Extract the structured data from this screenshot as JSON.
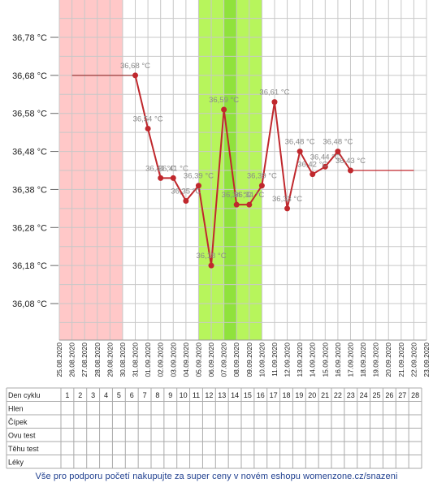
{
  "chart_data": {
    "type": "line",
    "y_ticks": [
      "36,08 °C",
      "36,18 °C",
      "36,28 °C",
      "36,38 °C",
      "36,48 °C",
      "36,58 °C",
      "36,68 °C",
      "36,78 °C"
    ],
    "y_tick_values": [
      36.08,
      36.18,
      36.28,
      36.38,
      36.48,
      36.58,
      36.68,
      36.78
    ],
    "ylim": [
      35.98,
      36.88
    ],
    "grid": true,
    "x_dates": [
      "25.08.2020",
      "26.08.2020",
      "27.08.2020",
      "28.08.2020",
      "29.08.2020",
      "30.08.2020",
      "31.08.2020",
      "01.09.2020",
      "02.09.2020",
      "03.09.2020",
      "04.09.2020",
      "05.09.2020",
      "06.09.2020",
      "07.09.2020",
      "08.09.2020",
      "09.09.2020",
      "10.09.2020",
      "11.09.2020",
      "12.09.2020",
      "13.09.2020",
      "14.09.2020",
      "15.09.2020",
      "16.09.2020",
      "17.09.2020",
      "18.09.2020",
      "19.09.2020",
      "20.09.2020",
      "21.09.2020",
      "22.09.2020",
      "23.09.2020"
    ],
    "series": [
      {
        "color": "#c0282d",
        "points": [
          {
            "x": "31.08.2020",
            "y": 36.68,
            "label": "36,68 °C"
          },
          {
            "x": "01.09.2020",
            "y": 36.54,
            "label": "36,54 °C"
          },
          {
            "x": "02.09.2020",
            "y": 36.41,
            "label": "36,41 °C"
          },
          {
            "x": "03.09.2020",
            "y": 36.41,
            "label": "36,41 °C"
          },
          {
            "x": "04.09.2020",
            "y": 36.35,
            "label": "36,35 °C"
          },
          {
            "x": "05.09.2020",
            "y": 36.39,
            "label": "36,39 °C"
          },
          {
            "x": "06.09.2020",
            "y": 36.18,
            "label": "36,18 °C"
          },
          {
            "x": "07.09.2020",
            "y": 36.59,
            "label": "36,59 °C"
          },
          {
            "x": "08.09.2020",
            "y": 36.34,
            "label": "36,34 °C"
          },
          {
            "x": "09.09.2020",
            "y": 36.34,
            "label": "36,34 °C"
          },
          {
            "x": "10.09.2020",
            "y": 36.39,
            "label": "36,39 °C"
          },
          {
            "x": "11.09.2020",
            "y": 36.61,
            "label": "36,61 °C"
          },
          {
            "x": "12.09.2020",
            "y": 36.33,
            "label": "36,33 °C"
          },
          {
            "x": "13.09.2020",
            "y": 36.48,
            "label": "36,48 °C"
          },
          {
            "x": "14.09.2020",
            "y": 36.42,
            "label": "36,42 °C"
          },
          {
            "x": "15.09.2020",
            "y": 36.44,
            "label": "36,44 °C"
          },
          {
            "x": "16.09.2020",
            "y": 36.48,
            "label": "36,48 °C"
          },
          {
            "x": "17.09.2020",
            "y": 36.43,
            "label": "36,43 °C"
          }
        ]
      }
    ],
    "baselines": [
      {
        "from": "26.08.2020",
        "to": "31.08.2020",
        "y": 36.68,
        "color": "#9a3a3a"
      },
      {
        "from": "17.09.2020",
        "to": "22.09.2020",
        "y": 36.43,
        "color": "#c0282d"
      }
    ],
    "bands": [
      {
        "from": "25.08.2020",
        "to": "30.08.2020",
        "color": "#ffc8c8",
        "meaning": "menstruation"
      },
      {
        "from": "05.09.2020",
        "to": "10.09.2020",
        "color": "#b7f55c",
        "meaning": "fertile window"
      },
      {
        "from": "07.09.2020",
        "to": "08.09.2020",
        "color": "#8fe23c",
        "meaning": "ovulation"
      }
    ]
  },
  "table": {
    "rows": [
      "Den cyklu",
      "Hlen",
      "Čípek",
      "Ovu test",
      "Těhu test",
      "Léky"
    ],
    "cycle_days": [
      "1",
      "2",
      "3",
      "4",
      "5",
      "6",
      "7",
      "8",
      "9",
      "10",
      "11",
      "12",
      "13",
      "14",
      "15",
      "16",
      "17",
      "18",
      "19",
      "20",
      "21",
      "22",
      "23",
      "24",
      "25",
      "26",
      "27",
      "28"
    ]
  },
  "footer": {
    "text": "Vše pro podporu početí nakupujte za super ceny v novém eshopu womenzone.cz/snazeni"
  },
  "colors": {
    "line": "#c0282d",
    "grid": "#c8c8c8",
    "footer_text": "#1f3f8f"
  }
}
